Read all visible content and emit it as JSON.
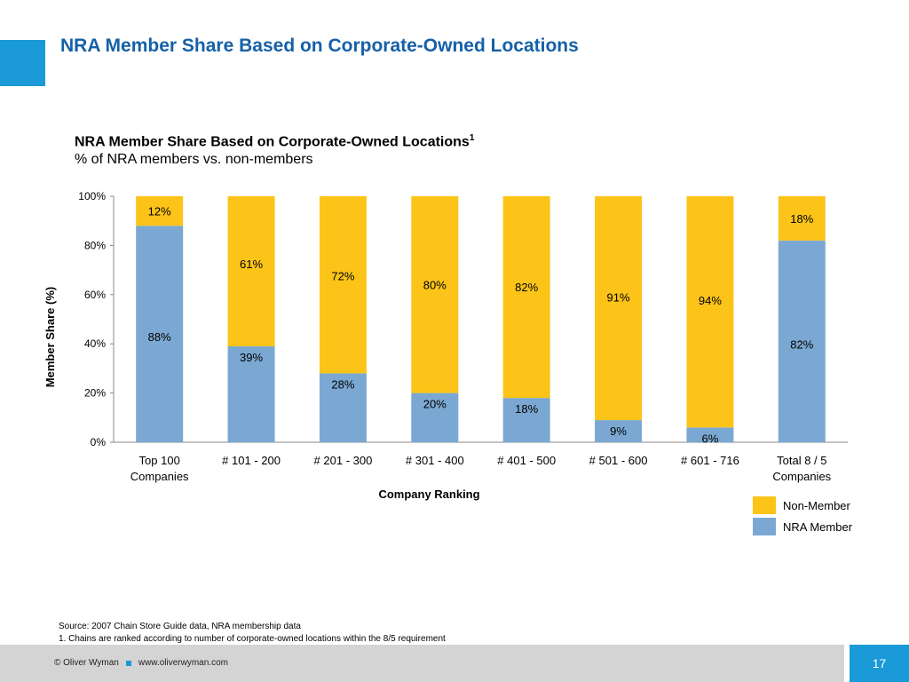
{
  "slide_title": "NRA Member Share Based on Corporate-Owned Locations",
  "chart_title": "NRA Member Share Based on Corporate-Owned Locations",
  "chart_title_footnote": "1",
  "chart_subtitle": "% of NRA members vs. non-members",
  "colors": {
    "member": "#7ba8d2",
    "non_member": "#fcc419",
    "brand_blue": "#1a9ad6",
    "title_blue": "#1560a8"
  },
  "chart_data": {
    "type": "bar",
    "stacked": true,
    "categories": [
      "Top 100\nCompanies",
      "# 101 - 200",
      "# 201 - 300",
      "# 301 - 400",
      "# 401 - 500",
      "# 501 - 600",
      "# 601 - 716",
      "Total 8 / 5\nCompanies"
    ],
    "series": [
      {
        "name": "NRA Member",
        "values": [
          88,
          39,
          28,
          20,
          18,
          9,
          6,
          82
        ]
      },
      {
        "name": "Non-Member",
        "values": [
          12,
          61,
          72,
          80,
          82,
          91,
          94,
          18
        ]
      }
    ],
    "xlabel": "Company Ranking",
    "ylabel": "Member Share (%)",
    "ylim": [
      0,
      100
    ],
    "yticks": [
      "0%",
      "20%",
      "40%",
      "60%",
      "80%",
      "100%"
    ],
    "legend": "bottom-right"
  },
  "legend": {
    "non_member": "Non-Member",
    "member": "NRA Member"
  },
  "source_line1": "Source: 2007 Chain Store Guide data, NRA membership data",
  "source_line2": "1. Chains are ranked according to number of corporate-owned locations within the 8/5 requirement",
  "footer_copyright": "© Oliver Wyman",
  "footer_url": "www.oliverwyman.com",
  "page_number": "17"
}
